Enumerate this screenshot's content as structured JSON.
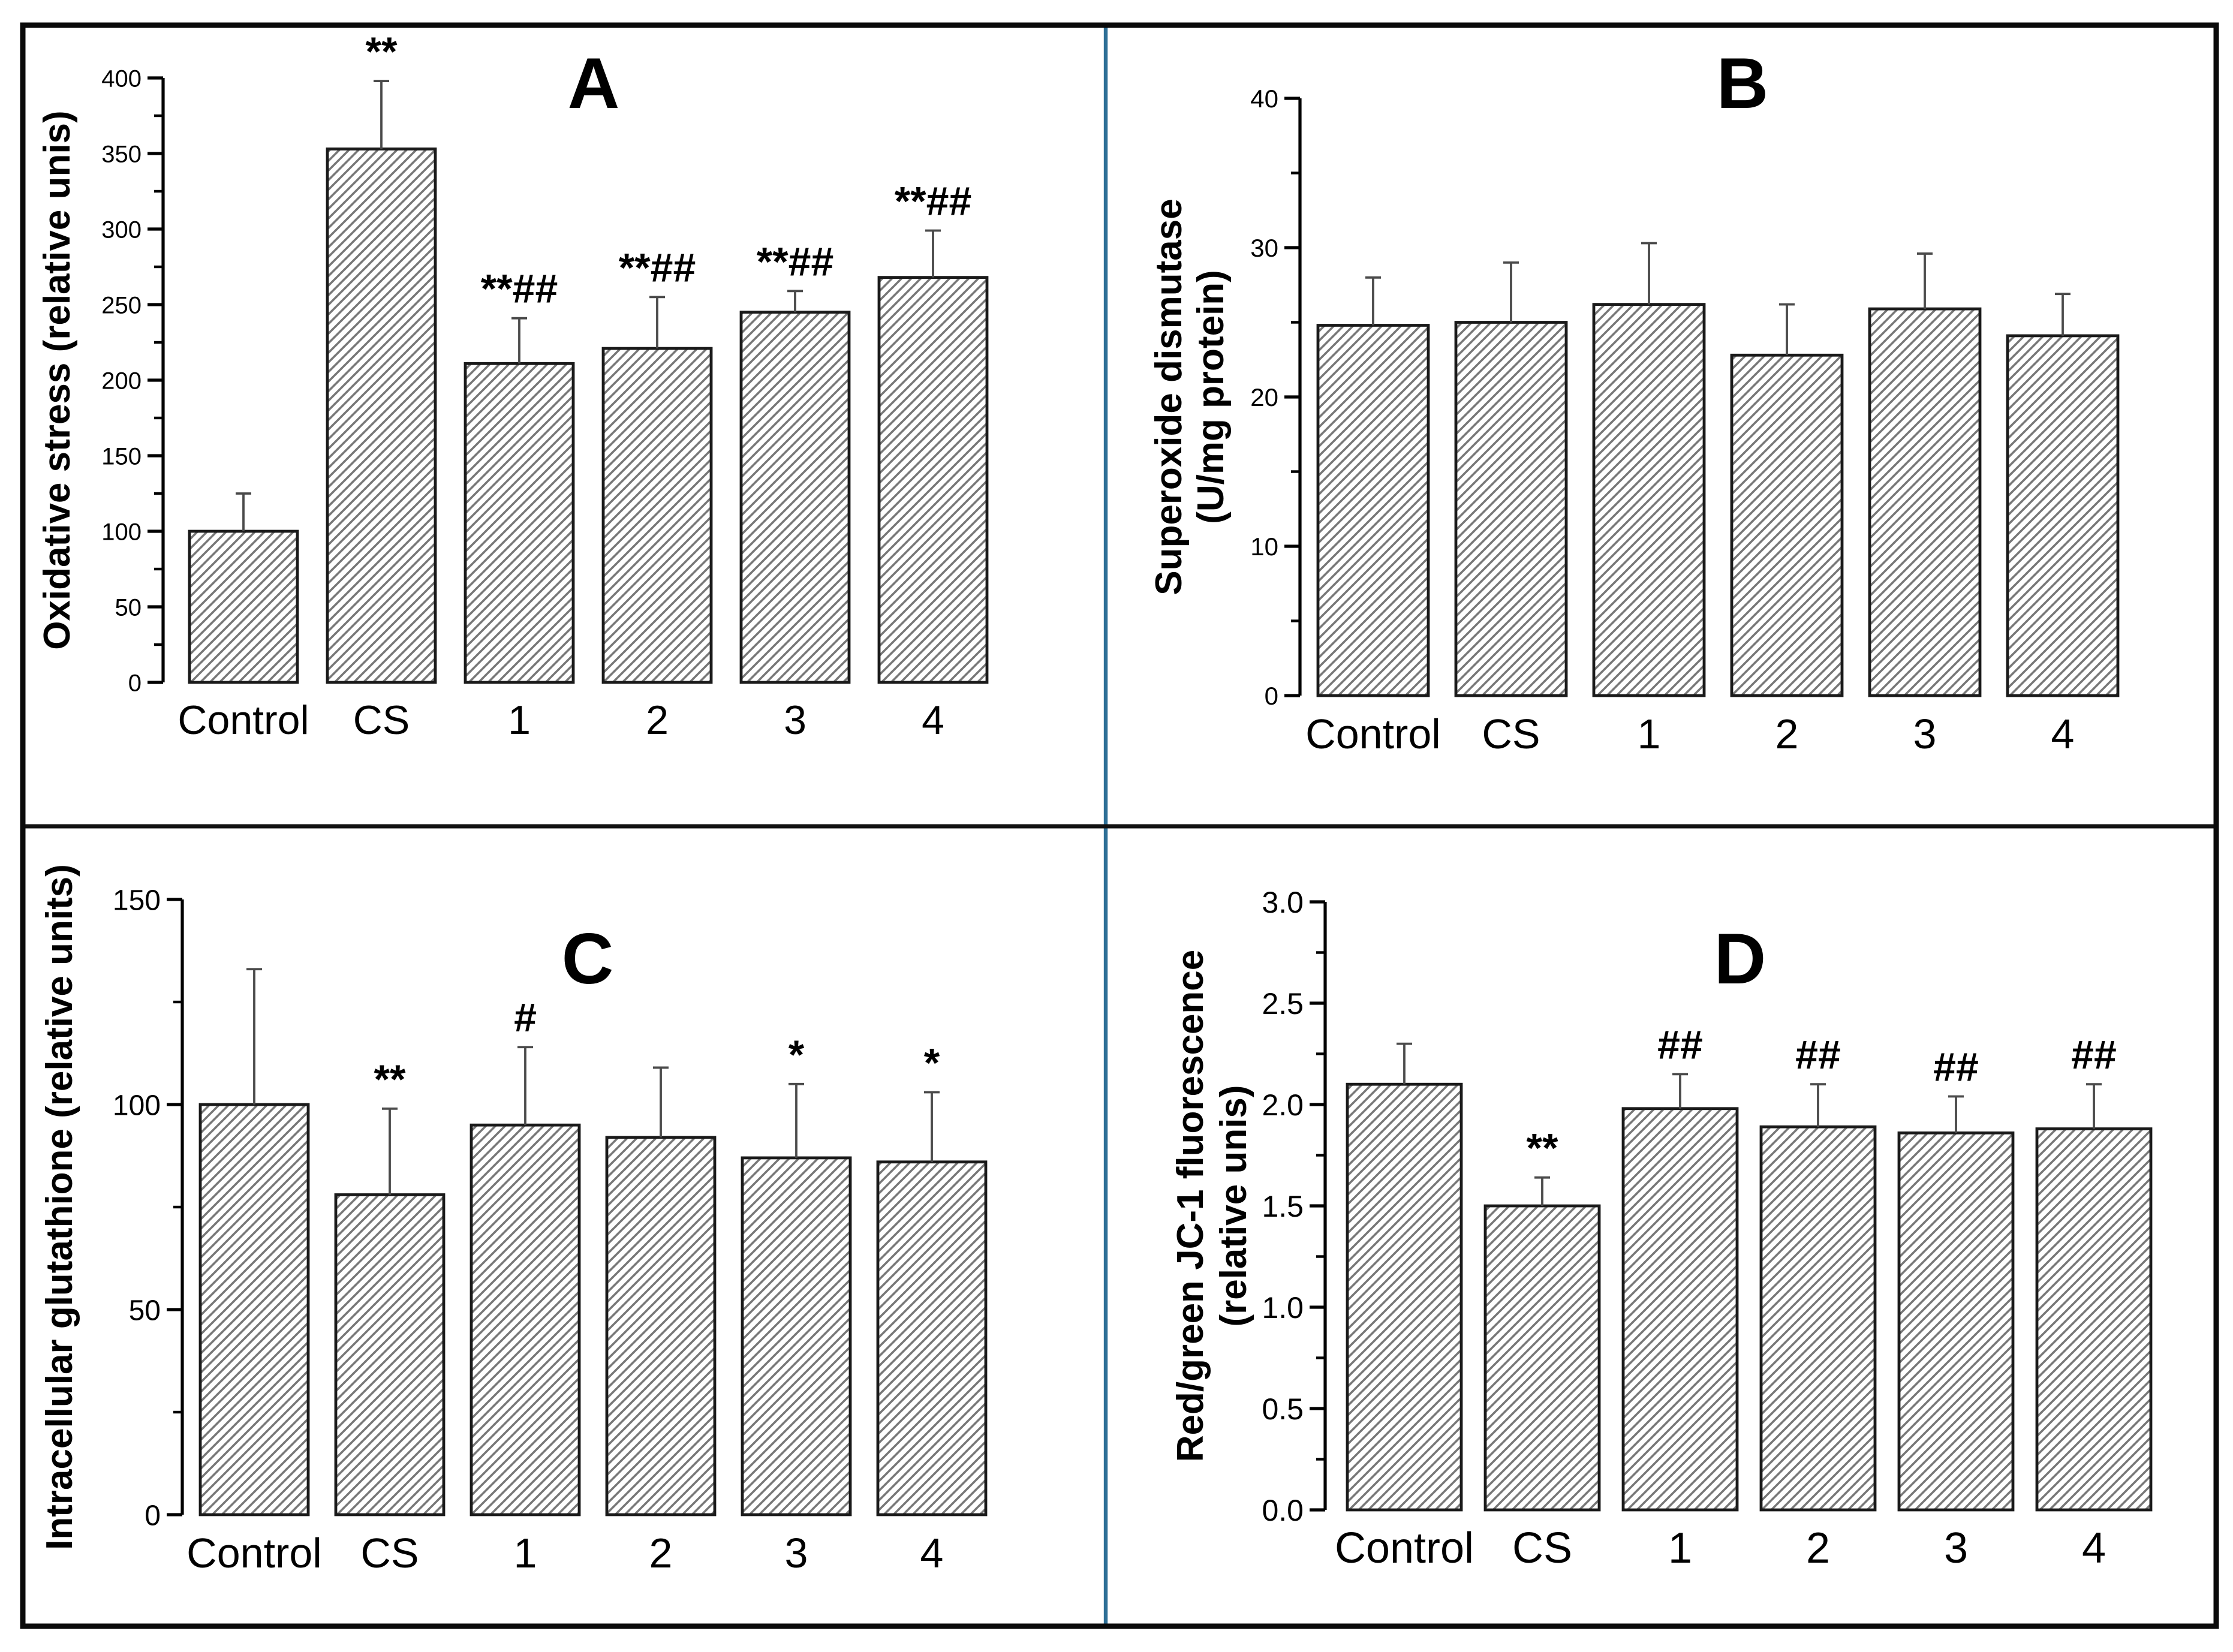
{
  "figure": {
    "background": "#ffffff",
    "outer_border_color": "#0a0a0a",
    "vertical_divider_color": "#2e6f96",
    "horizontal_divider_color": "#111111",
    "bar_edge_color": "#1a1a1a",
    "hatch_line_color": "#787878",
    "error_bar_color": "#4a4a4a",
    "text_color": "#000000"
  },
  "chart_data": [
    {
      "panel": "A",
      "type": "bar",
      "title": "A",
      "ylabel_lines": [
        "Oxidative stress (relative unis)"
      ],
      "xlabel": "",
      "categories": [
        "Control",
        "CS",
        "1",
        "2",
        "3",
        "4"
      ],
      "values": [
        100,
        353,
        211,
        221,
        245,
        268
      ],
      "errors_up": [
        25,
        45,
        30,
        34,
        14,
        31
      ],
      "annotations": [
        "",
        "**",
        "**##",
        "**##",
        "**##",
        "**##"
      ],
      "ylim": [
        0,
        400
      ],
      "ytick_major": 50,
      "ytick_minor": 25,
      "ytick_decimals": 0,
      "grid": false,
      "legend": "none",
      "bar_fill": "white-with-diagonal-hatch"
    },
    {
      "panel": "B",
      "type": "bar",
      "title": "B",
      "ylabel_lines": [
        "Superoxide dismutase",
        "(U/mg protein)"
      ],
      "xlabel": "",
      "categories": [
        "Control",
        "CS",
        "1",
        "2",
        "3",
        "4"
      ],
      "values": [
        24.8,
        25.0,
        26.2,
        22.8,
        25.9,
        24.1
      ],
      "errors_up": [
        3.2,
        4.0,
        4.1,
        3.4,
        3.7,
        2.8
      ],
      "annotations": [
        "",
        "",
        "",
        "",
        "",
        ""
      ],
      "ylim": [
        0,
        40
      ],
      "ytick_major": 10,
      "ytick_minor": 5,
      "ytick_decimals": 0,
      "grid": false,
      "legend": "none",
      "bar_fill": "white-with-diagonal-hatch"
    },
    {
      "panel": "C",
      "type": "bar",
      "title": "C",
      "ylabel_lines": [
        "Intracellular glutathione (relative units)"
      ],
      "xlabel": "",
      "categories": [
        "Control",
        "CS",
        "1",
        "2",
        "3",
        "4"
      ],
      "values": [
        100,
        78,
        95,
        92,
        87,
        86
      ],
      "errors_up": [
        33,
        21,
        19,
        17,
        18,
        17
      ],
      "annotations": [
        "",
        "**",
        "#",
        "",
        "*",
        "*"
      ],
      "ylim": [
        0,
        150
      ],
      "ytick_major": 50,
      "ytick_minor": 25,
      "ytick_decimals": 0,
      "grid": false,
      "legend": "none",
      "bar_fill": "white-with-diagonal-hatch"
    },
    {
      "panel": "D",
      "type": "bar",
      "title": "D",
      "ylabel_lines": [
        "Red/green JC-1 fluorescence",
        "(relative unis)"
      ],
      "xlabel": "",
      "categories": [
        "Control",
        "CS",
        "1",
        "2",
        "3",
        "4"
      ],
      "values": [
        2.1,
        1.5,
        1.98,
        1.89,
        1.86,
        1.88
      ],
      "errors_up": [
        0.2,
        0.14,
        0.17,
        0.21,
        0.18,
        0.22
      ],
      "annotations": [
        "",
        "**",
        "##",
        "##",
        "##",
        "##"
      ],
      "ylim": [
        0,
        3.0
      ],
      "ytick_major": 0.5,
      "ytick_minor": 0.25,
      "ytick_decimals": 1,
      "grid": false,
      "legend": "none",
      "bar_fill": "white-with-diagonal-hatch"
    }
  ]
}
